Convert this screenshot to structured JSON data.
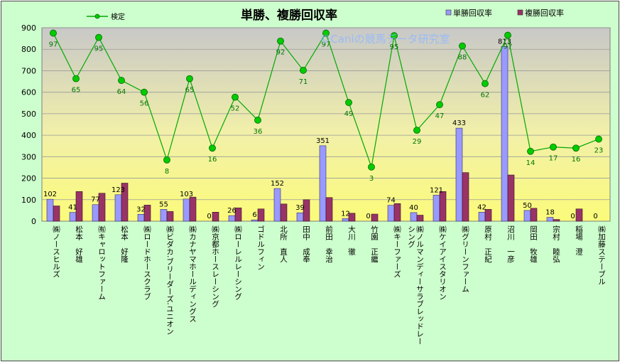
{
  "chart_data": {
    "type": "bar+line",
    "title": "単勝、複勝回収率",
    "watermark": "©Caniの競馬データ研究室",
    "ylim": [
      0,
      900
    ],
    "yticks": [
      0,
      100,
      200,
      300,
      400,
      500,
      600,
      700,
      800,
      900
    ],
    "grid": true,
    "legend": {
      "line_label": "検定",
      "bar1_label": "単勝回収率",
      "bar2_label": "複勝回収率",
      "placement": "top"
    },
    "categories": [
      "㈱ノースヒルズ",
      "松本　好雄",
      "㈲キャロットファーム",
      "松本　好隆",
      "㈱ロードホースクラブ",
      "㈱ビダカ.ブリーダーズ.ユニオン",
      "㈱カナヤマホールディングス",
      "㈱京都ホースレーシング",
      "㈱ローレルレーシング",
      "ゴドルフィン",
      "北所　直人",
      "田中　成奉",
      "前田　幸治",
      "大川　徹",
      "竹園　正繼",
      "㈱キーファーズ",
      "㈱ノルマンディーサラブレッドレーシング",
      "㈱ケイアイスタリオン",
      "㈱グリーンファーム",
      "原村　正紀",
      "沼川　一彦",
      "岡田　牧雄",
      "宗村　睦弘",
      "稲場　澄",
      "㈱加藤ステーブル"
    ],
    "series": [
      {
        "name": "単勝回収率",
        "color": "#9999ff",
        "values": [
          102,
          41,
          77,
          123,
          32,
          55,
          103,
          0,
          26,
          6,
          152,
          39,
          351,
          12,
          0,
          74,
          40,
          121,
          433,
          42,
          813,
          50,
          18,
          0,
          0
        ]
      },
      {
        "name": "複勝回収率",
        "color": "#993366",
        "values": [
          71,
          138,
          130,
          177,
          75,
          45,
          112,
          42,
          62,
          57,
          80,
          100,
          110,
          37,
          33,
          82,
          28,
          138,
          226,
          55,
          215,
          60,
          8,
          57,
          0
        ]
      },
      {
        "name": "検定",
        "color": "#00aa00",
        "values": [
          97,
          65,
          95,
          64,
          56,
          8,
          65,
          16,
          52,
          36,
          92,
          71,
          97,
          49,
          3,
          95,
          29,
          47,
          88,
          62,
          97,
          14,
          17,
          16,
          23
        ],
        "plotted": [
          875,
          663,
          855,
          655,
          600,
          285,
          663,
          340,
          577,
          470,
          838,
          702,
          875,
          552,
          252,
          863,
          423,
          542,
          815,
          640,
          865,
          325,
          345,
          340,
          382
        ]
      }
    ]
  }
}
